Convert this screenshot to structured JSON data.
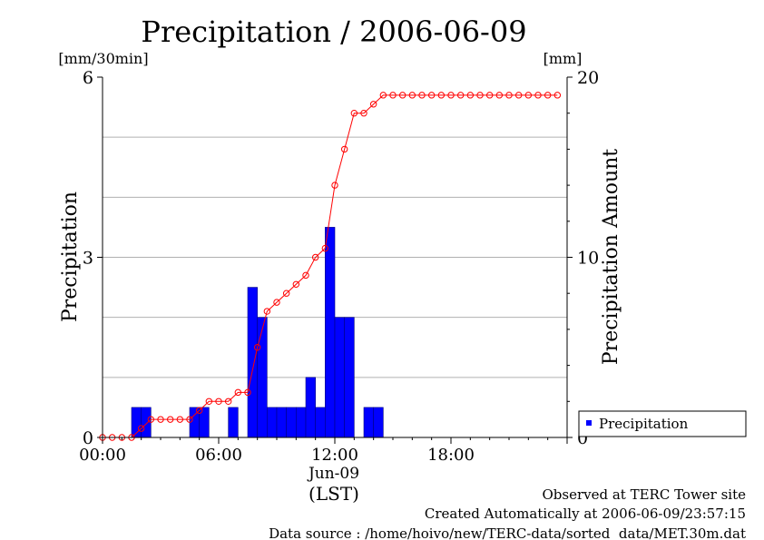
{
  "chart_data": {
    "type": "bar",
    "title": "Precipitation / 2006-06-09",
    "ylabel_left": "Precipitation",
    "ylabel_right": "Precipitation Amount",
    "unit_left": "[mm/30min]",
    "unit_right": "[mm]",
    "ylim_left": [
      0,
      6
    ],
    "ylim_right": [
      0,
      20
    ],
    "yticks_left": [
      "0",
      "3",
      "6"
    ],
    "yticks_right": [
      "0",
      "10",
      "20"
    ],
    "xlim_hours": [
      0,
      24
    ],
    "xticks": [
      {
        "hour": 0,
        "label": "00:00"
      },
      {
        "hour": 6,
        "label": "06:00"
      },
      {
        "hour": 12,
        "label": "12:00"
      },
      {
        "hour": 18,
        "label": "18:00"
      }
    ],
    "xdate_label": "Jun-09",
    "xunit_label": "(LST)",
    "legend": {
      "label": "Precipitation",
      "position": "bottom-right",
      "color": "#0000ff"
    },
    "grid": true,
    "colors": {
      "bar": "#0000ff",
      "bar_edge": "#000080",
      "line": "#ff0000",
      "grid": "#b0b0b0"
    },
    "series": [
      {
        "kind": "bar",
        "axis": "left",
        "interval_start_hours": [
          0,
          0.5,
          1,
          1.5,
          2,
          2.5,
          3,
          3.5,
          4,
          4.5,
          5,
          5.5,
          6,
          6.5,
          7,
          7.5,
          8,
          8.5,
          9,
          9.5,
          10,
          10.5,
          11,
          11.5,
          12,
          12.5,
          13,
          13.5,
          14,
          14.5,
          15,
          15.5,
          16,
          16.5,
          17,
          17.5,
          18,
          18.5,
          19,
          19.5,
          20,
          20.5,
          21,
          21.5,
          22,
          22.5,
          23,
          23.5
        ],
        "values": [
          0,
          0,
          0,
          0.5,
          0.5,
          0,
          0,
          0,
          0,
          0.5,
          0.5,
          0,
          0,
          0.5,
          0,
          2.5,
          2,
          0.5,
          0.5,
          0.5,
          0.5,
          1,
          0.5,
          3.5,
          2,
          2,
          0,
          0.5,
          0.5,
          0,
          0,
          0,
          0,
          0,
          0,
          0,
          0,
          0,
          0,
          0,
          0,
          0,
          0,
          0,
          0,
          0,
          0,
          0
        ]
      },
      {
        "kind": "line",
        "axis": "right",
        "x_hours": [
          0,
          0.5,
          1,
          1.5,
          2,
          2.5,
          3,
          3.5,
          4,
          4.5,
          5,
          5.5,
          6,
          6.5,
          7,
          7.5,
          8,
          8.5,
          9,
          9.5,
          10,
          10.5,
          11,
          11.5,
          12,
          12.5,
          13,
          13.5,
          14,
          14.5,
          15,
          15.5,
          16,
          16.5,
          17,
          17.5,
          18,
          18.5,
          19,
          19.5,
          20,
          20.5,
          21,
          21.5,
          22,
          22.5,
          23,
          23.5
        ],
        "values": [
          0,
          0,
          0,
          0,
          0.5,
          1,
          1,
          1,
          1,
          1,
          1.5,
          2,
          2,
          2,
          2.5,
          2.5,
          5,
          7,
          7.5,
          8,
          8.5,
          9,
          10,
          10.5,
          14,
          16,
          18,
          18,
          18.5,
          19,
          19,
          19,
          19,
          19,
          19,
          19,
          19,
          19,
          19,
          19,
          19,
          19,
          19,
          19,
          19,
          19,
          19,
          19
        ]
      }
    ],
    "footer": [
      "Observed at TERC Tower site",
      "Created Automatically at 2006-06-09/23:57:15",
      "Data source : /home/hoivo/new/TERC-data/sorted  data/MET.30m.dat"
    ]
  }
}
